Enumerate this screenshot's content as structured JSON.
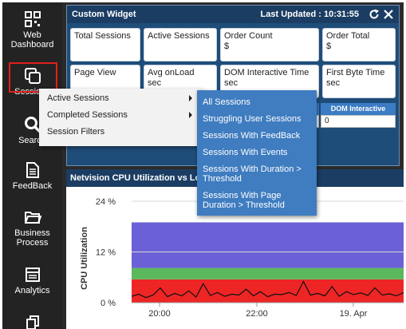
{
  "sidebar": {
    "items": [
      {
        "label": "Web Dashboard",
        "icon": "grid-icon"
      },
      {
        "label": "Sessions",
        "icon": "copy-icon"
      },
      {
        "label": "Search",
        "icon": "search-icon"
      },
      {
        "label": "FeedBack",
        "icon": "document-icon"
      },
      {
        "label": "Business Process",
        "icon": "folder-icon"
      },
      {
        "label": "Analytics",
        "icon": "calendar-icon"
      }
    ]
  },
  "widget": {
    "title": "Custom Widget",
    "last_updated": "Last Updated : 10:31:55",
    "stats": [
      {
        "label": "Total Sessions",
        "unit": ""
      },
      {
        "label": "Active Sessions",
        "unit": ""
      },
      {
        "label": "Order Count",
        "unit": "$"
      },
      {
        "label": "Order Total",
        "unit": "$"
      },
      {
        "label": "Page View",
        "unit": ""
      },
      {
        "label": "Avg onLoad",
        "unit": "sec"
      },
      {
        "label": "DOM Interactive Time",
        "unit": "sec"
      },
      {
        "label": "First Byte Time",
        "unit": "sec"
      }
    ],
    "table": {
      "headers": [
        "",
        "DOM Interactive"
      ],
      "row": [
        "",
        "0"
      ]
    }
  },
  "context_menu": {
    "items": [
      "Active Sessions",
      "Completed Sessions",
      "Session Filters"
    ]
  },
  "submenu": {
    "items": [
      "All Sessions",
      "Struggling User Sessions",
      "Sessions With FeedBack",
      "Sessions With Events",
      "Sessions With Duration > Threshold",
      "Sessions With Page Duration > Threshold"
    ]
  },
  "chart_panel": {
    "title": "Netvision CPU Utilization vs Load"
  },
  "chart_data": {
    "type": "area",
    "title": "Netvision CPU Utilization vs Load",
    "ylabel": "CPU Utilization",
    "ytick_labels": [
      "24 %",
      "12 %",
      "0 %"
    ],
    "xtick_labels": [
      "20:00",
      "22:00",
      "19. Apr"
    ],
    "ylim": [
      0,
      24
    ],
    "bands": [
      {
        "name": "red",
        "from": 0,
        "to": 5.5,
        "color": "#ee2525"
      },
      {
        "name": "green",
        "from": 5.5,
        "to": 8.2,
        "color": "#5cb85c"
      },
      {
        "name": "purple",
        "from": 8.2,
        "to": 19,
        "color": "#6b60d6"
      }
    ],
    "series": [
      {
        "values": [
          1.5,
          2.0,
          1.2,
          1.8,
          3.5,
          1.4,
          2.2,
          1.6,
          2.8,
          1.3,
          4.5,
          1.7,
          2.4,
          1.5,
          2.0,
          1.8,
          3.2,
          1.6,
          2.6,
          1.4,
          2.0,
          1.9,
          2.4,
          1.7,
          5.0,
          1.8,
          2.2,
          1.6,
          3.8,
          1.5,
          2.6,
          1.9,
          2.3,
          1.7,
          3.5,
          1.8,
          2.1,
          1.6,
          2.4
        ]
      }
    ]
  },
  "colors": {
    "sidebar_bg": "#232323",
    "widget_bg": "#1f4d7a",
    "header_bg": "#1b3d63",
    "submenu_bg": "#3f7cc0",
    "highlight": "#e0201b"
  }
}
